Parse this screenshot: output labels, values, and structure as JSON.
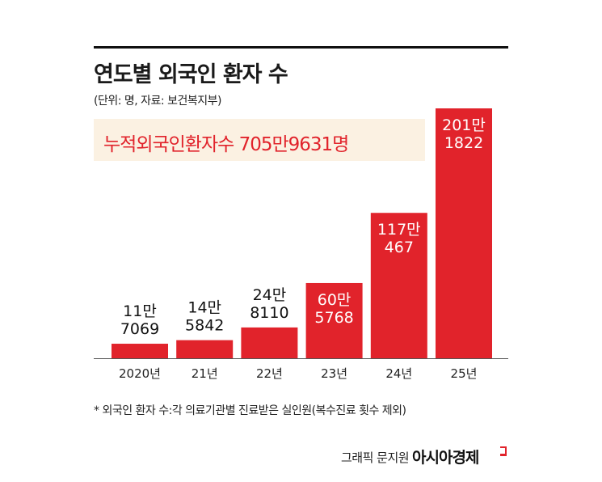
{
  "header": {
    "title": "연도별 외국인 환자 수",
    "subtitle": "(단위: 명, 자료: 보건복지부)"
  },
  "banner": {
    "text": "누적외국인환자수 705만9631명"
  },
  "colors": {
    "bar": "#e1232b",
    "banner_bg": "#fbf1e2",
    "banner_text": "#e1232b"
  },
  "chart_data": {
    "type": "bar",
    "categories": [
      "2020년",
      "21년",
      "22년",
      "23년",
      "24년",
      "25년"
    ],
    "values": [
      117069,
      145842,
      248110,
      605768,
      1170467,
      2011822
    ],
    "data_labels": [
      [
        "11만",
        "7069"
      ],
      [
        "14만",
        "5842"
      ],
      [
        "24만",
        "8110"
      ],
      [
        "60만",
        "5768"
      ],
      [
        "117만",
        "467"
      ],
      [
        "201만",
        "1822"
      ]
    ],
    "title": "연도별 외국인 환자 수",
    "xlabel": "",
    "ylabel": "",
    "ylim": [
      0,
      2011822
    ],
    "grid": false,
    "legend": "none"
  },
  "footnote": "* 외국인 환자 수:각 의료기관별 진료받은 실인원(복수진료 횟수 제외)",
  "credit": {
    "graphic": "그래픽 문지원",
    "brand": "아시아경제"
  }
}
